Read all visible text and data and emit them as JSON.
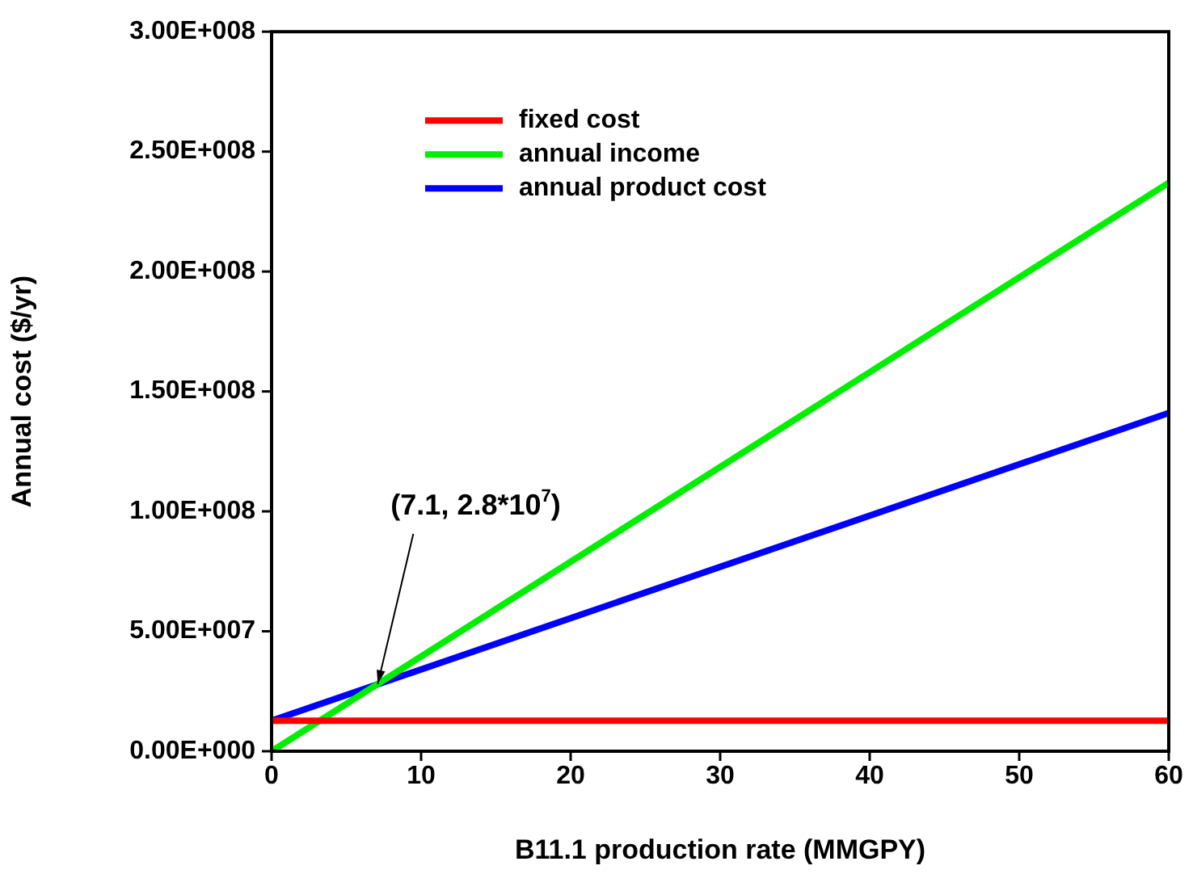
{
  "chart_data": {
    "type": "line",
    "xlabel": "B11.1 production rate (MMGPY)",
    "ylabel": "Annual cost ($/yr)",
    "x": [
      0,
      60
    ],
    "series": [
      {
        "name": "fixed cost",
        "color": "#ff0000",
        "values": [
          12700000,
          12700000
        ]
      },
      {
        "name": "annual income",
        "color": "#00ee00",
        "values": [
          0,
          237000000
        ]
      },
      {
        "name": "annual product cost",
        "color": "#0000ff",
        "values": [
          12700000,
          141000000
        ]
      }
    ],
    "xlim": [
      0,
      60
    ],
    "xticks": [
      0,
      10,
      20,
      30,
      40,
      50,
      60
    ],
    "ylim": [
      0,
      300000000
    ],
    "yticks": [
      {
        "value": 0,
        "label": "0.00E+000"
      },
      {
        "value": 50000000,
        "label": "5.00E+007"
      },
      {
        "value": 100000000,
        "label": "1.00E+008"
      },
      {
        "value": 150000000,
        "label": "1.50E+008"
      },
      {
        "value": 200000000,
        "label": "2.00E+008"
      },
      {
        "value": 250000000,
        "label": "2.50E+008"
      },
      {
        "value": 300000000,
        "label": "3.00E+008"
      }
    ],
    "annotations": [
      {
        "text": "(7.1, 2.8*10$^{7}$)",
        "x": 7.1,
        "y": 28000000
      }
    ],
    "legend": "top left",
    "grid": false,
    "marker": "none",
    "line_style": "solid"
  }
}
